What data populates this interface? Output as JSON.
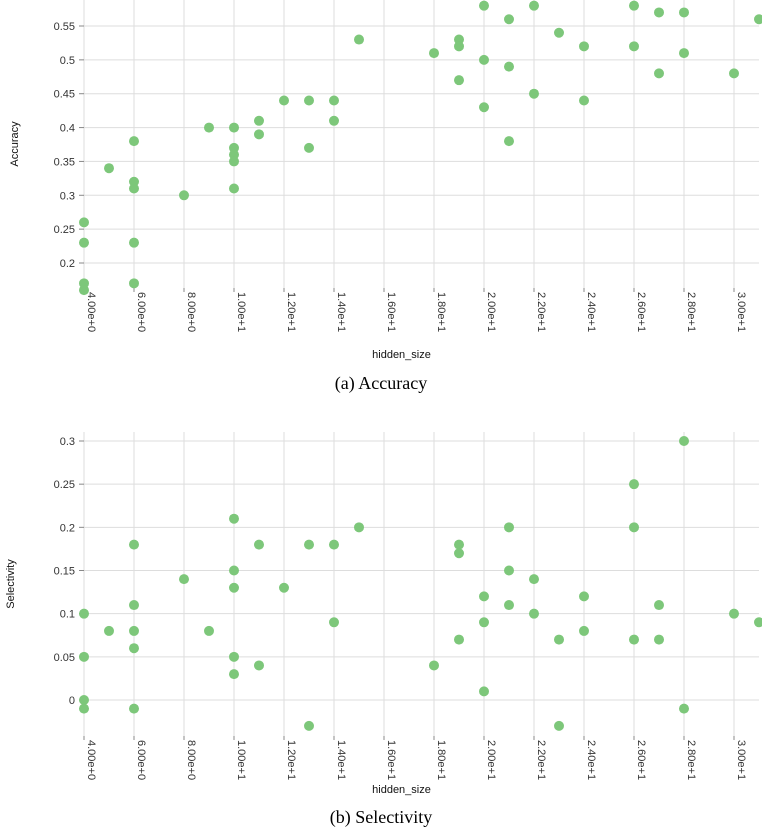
{
  "colors": {
    "point": "#7dc77a",
    "grid": "#dddddd"
  },
  "chart_data": [
    {
      "type": "scatter",
      "title": "",
      "caption": "(a) Accuracy",
      "xlabel": "hidden_size",
      "ylabel": "Accuracy",
      "xlim": [
        4,
        31
      ],
      "ylim": [
        0.15,
        0.58
      ],
      "grid": true,
      "x_ticks": [
        4,
        6,
        8,
        10,
        12,
        14,
        16,
        18,
        20,
        22,
        24,
        26,
        28,
        30
      ],
      "x_tick_labels": [
        "4.00e+0",
        "6.00e+0",
        "8.00e+0",
        "1.00e+1",
        "1.20e+1",
        "1.40e+1",
        "1.60e+1",
        "1.80e+1",
        "2.00e+1",
        "2.20e+1",
        "2.40e+1",
        "2.60e+1",
        "2.80e+1",
        "3.00e+1"
      ],
      "y_ticks": [
        0.2,
        0.25,
        0.3,
        0.35,
        0.4,
        0.45,
        0.5,
        0.55
      ],
      "y_tick_labels": [
        "0.2",
        "0.25",
        "0.3",
        "0.35",
        "0.4",
        "0.45",
        "0.5",
        "0.55"
      ],
      "points": [
        [
          4,
          0.26
        ],
        [
          4,
          0.23
        ],
        [
          4,
          0.17
        ],
        [
          4,
          0.16
        ],
        [
          5,
          0.34
        ],
        [
          6,
          0.38
        ],
        [
          6,
          0.32
        ],
        [
          6,
          0.31
        ],
        [
          6,
          0.23
        ],
        [
          6,
          0.17
        ],
        [
          8,
          0.3
        ],
        [
          9,
          0.4
        ],
        [
          10,
          0.4
        ],
        [
          10,
          0.37
        ],
        [
          10,
          0.36
        ],
        [
          10,
          0.35
        ],
        [
          10,
          0.31
        ],
        [
          11,
          0.41
        ],
        [
          11,
          0.39
        ],
        [
          12,
          0.44
        ],
        [
          13,
          0.44
        ],
        [
          13,
          0.37
        ],
        [
          14,
          0.44
        ],
        [
          14,
          0.41
        ],
        [
          15,
          0.53
        ],
        [
          18,
          0.51
        ],
        [
          19,
          0.53
        ],
        [
          19,
          0.52
        ],
        [
          19,
          0.47
        ],
        [
          20,
          0.58
        ],
        [
          20,
          0.5
        ],
        [
          20,
          0.43
        ],
        [
          21,
          0.56
        ],
        [
          21,
          0.49
        ],
        [
          21,
          0.38
        ],
        [
          22,
          0.58
        ],
        [
          22,
          0.45
        ],
        [
          23,
          0.54
        ],
        [
          24,
          0.52
        ],
        [
          24,
          0.44
        ],
        [
          26,
          0.58
        ],
        [
          26,
          0.52
        ],
        [
          27,
          0.57
        ],
        [
          27,
          0.48
        ],
        [
          28,
          0.57
        ],
        [
          28,
          0.51
        ],
        [
          30,
          0.48
        ],
        [
          31,
          0.56
        ]
      ]
    },
    {
      "type": "scatter",
      "title": "",
      "caption": "(b) Selectivity",
      "xlabel": "hidden_size",
      "ylabel": "Selectivity",
      "xlim": [
        4,
        31
      ],
      "ylim": [
        -0.035,
        0.3
      ],
      "grid": true,
      "x_ticks": [
        4,
        6,
        8,
        10,
        12,
        14,
        16,
        18,
        20,
        22,
        24,
        26,
        28,
        30
      ],
      "x_tick_labels": [
        "4.00e+0",
        "6.00e+0",
        "8.00e+0",
        "1.00e+1",
        "1.20e+1",
        "1.40e+1",
        "1.60e+1",
        "1.80e+1",
        "2.00e+1",
        "2.20e+1",
        "2.40e+1",
        "2.60e+1",
        "2.80e+1",
        "3.00e+1"
      ],
      "y_ticks": [
        0,
        0.05,
        0.1,
        0.15,
        0.2,
        0.25,
        0.3
      ],
      "y_tick_labels": [
        "0",
        "0.05",
        "0.1",
        "0.15",
        "0.2",
        "0.25",
        "0.3"
      ],
      "points": [
        [
          4,
          0.1
        ],
        [
          4,
          0.05
        ],
        [
          4,
          0.0
        ],
        [
          4,
          -0.01
        ],
        [
          5,
          0.08
        ],
        [
          6,
          0.18
        ],
        [
          6,
          0.11
        ],
        [
          6,
          0.08
        ],
        [
          6,
          0.06
        ],
        [
          6,
          -0.01
        ],
        [
          8,
          0.14
        ],
        [
          9,
          0.08
        ],
        [
          10,
          0.21
        ],
        [
          10,
          0.15
        ],
        [
          10,
          0.13
        ],
        [
          10,
          0.05
        ],
        [
          10,
          0.03
        ],
        [
          11,
          0.18
        ],
        [
          11,
          0.04
        ],
        [
          12,
          0.13
        ],
        [
          13,
          0.18
        ],
        [
          13,
          -0.03
        ],
        [
          14,
          0.18
        ],
        [
          14,
          0.09
        ],
        [
          15,
          0.2
        ],
        [
          18,
          0.04
        ],
        [
          19,
          0.18
        ],
        [
          19,
          0.17
        ],
        [
          19,
          0.07
        ],
        [
          20,
          0.12
        ],
        [
          20,
          0.09
        ],
        [
          20,
          0.01
        ],
        [
          21,
          0.2
        ],
        [
          21,
          0.15
        ],
        [
          21,
          0.11
        ],
        [
          22,
          0.14
        ],
        [
          22,
          0.1
        ],
        [
          23,
          0.07
        ],
        [
          23,
          -0.03
        ],
        [
          24,
          0.12
        ],
        [
          24,
          0.08
        ],
        [
          26,
          0.25
        ],
        [
          26,
          0.2
        ],
        [
          26,
          0.07
        ],
        [
          27,
          0.11
        ],
        [
          27,
          0.07
        ],
        [
          28,
          0.3
        ],
        [
          28,
          -0.01
        ],
        [
          30,
          0.1
        ],
        [
          31,
          0.09
        ]
      ]
    }
  ]
}
